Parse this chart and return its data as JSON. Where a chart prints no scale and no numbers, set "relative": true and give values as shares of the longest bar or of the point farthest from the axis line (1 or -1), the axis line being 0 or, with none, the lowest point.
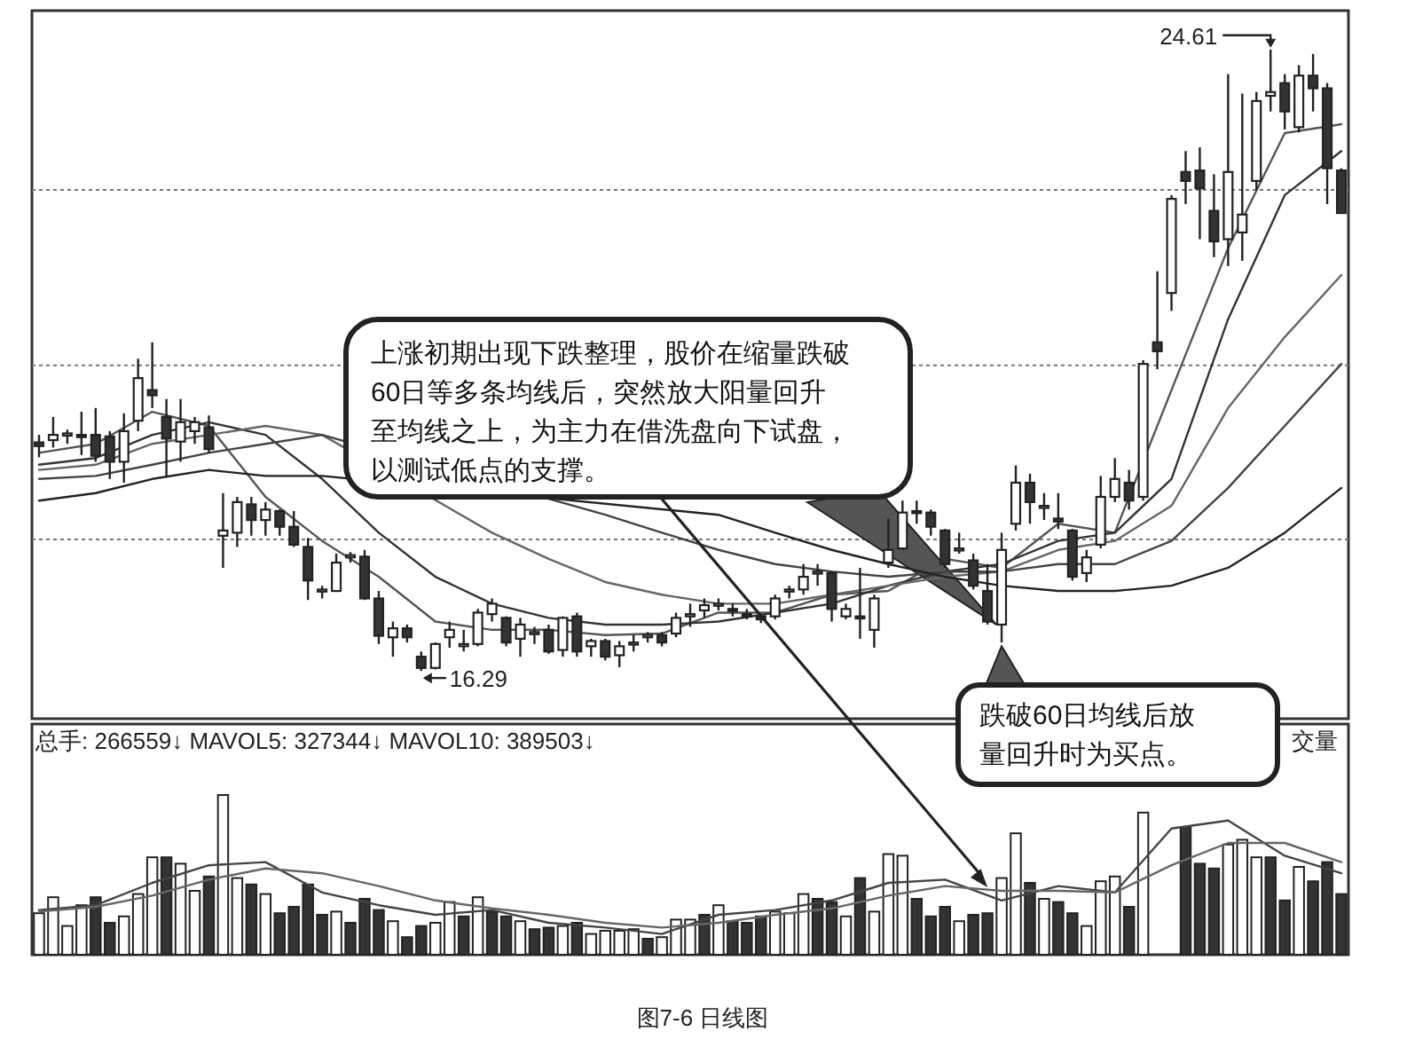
{
  "chart_data": [
    {
      "type": "candlestick",
      "categories": [
        null,
        null,
        null,
        null,
        null,
        null,
        null,
        null,
        null,
        null,
        null,
        null,
        null,
        null,
        null,
        null,
        null,
        null,
        null,
        null,
        null,
        null,
        null,
        null,
        null,
        null,
        null,
        null,
        null,
        null,
        null,
        null,
        null,
        null,
        null,
        null,
        null,
        null,
        null,
        null,
        null,
        null,
        null,
        null,
        null,
        null,
        null,
        null,
        null,
        null,
        null,
        null,
        null,
        null,
        null,
        null,
        null,
        null,
        null,
        null,
        null,
        null,
        null,
        null,
        null,
        null,
        null,
        null,
        null,
        null,
        null,
        null,
        null,
        null,
        null,
        null,
        null,
        null,
        null,
        null,
        null,
        null,
        null,
        null,
        null,
        null,
        null,
        null,
        null,
        null,
        null,
        null,
        null
      ],
      "ohlc": [
        [
          19.35,
          19.45,
          19.15,
          19.3
        ],
        [
          19.38,
          19.69,
          19.28,
          19.45
        ],
        [
          19.44,
          19.52,
          19.33,
          19.47
        ],
        [
          19.45,
          19.76,
          19.18,
          19.42
        ],
        [
          19.45,
          19.81,
          19.09,
          19.17
        ],
        [
          19.43,
          19.5,
          18.86,
          19.09
        ],
        [
          19.09,
          19.74,
          18.81,
          19.5
        ],
        [
          19.64,
          20.47,
          19.5,
          20.21
        ],
        [
          20.05,
          20.69,
          19.81,
          19.98
        ],
        [
          19.69,
          19.93,
          18.88,
          19.4
        ],
        [
          19.36,
          19.93,
          19.09,
          19.62
        ],
        [
          19.5,
          19.69,
          19.33,
          19.62
        ],
        [
          19.55,
          19.71,
          19.21,
          19.26
        ],
        [
          18.1,
          18.67,
          17.67,
          18.17
        ],
        [
          18.14,
          18.62,
          17.95,
          18.55
        ],
        [
          18.52,
          18.62,
          18.1,
          18.31
        ],
        [
          18.31,
          18.55,
          18.1,
          18.45
        ],
        [
          18.43,
          18.45,
          18.1,
          18.22
        ],
        [
          18.22,
          18.43,
          17.95,
          17.98
        ],
        [
          17.95,
          18.07,
          17.24,
          17.5
        ],
        [
          17.36,
          17.43,
          17.26,
          17.38
        ],
        [
          17.36,
          17.86,
          17.36,
          17.74
        ],
        [
          17.81,
          17.88,
          17.74,
          17.84
        ],
        [
          17.82,
          17.91,
          17.24,
          17.26
        ],
        [
          17.26,
          17.36,
          16.65,
          16.76
        ],
        [
          16.74,
          16.95,
          16.48,
          16.86
        ],
        [
          16.86,
          16.91,
          16.67,
          16.74
        ],
        [
          16.48,
          16.55,
          16.29,
          16.33
        ],
        [
          16.33,
          16.67,
          16.31,
          16.65
        ],
        [
          16.74,
          16.95,
          16.6,
          16.84
        ],
        [
          16.62,
          16.84,
          16.55,
          16.65
        ],
        [
          16.65,
          17.12,
          16.62,
          17.07
        ],
        [
          17.05,
          17.26,
          16.95,
          17.19
        ],
        [
          17.0,
          17.02,
          16.62,
          16.67
        ],
        [
          16.72,
          17.0,
          16.48,
          16.91
        ],
        [
          16.79,
          16.88,
          16.65,
          16.81
        ],
        [
          16.84,
          16.91,
          16.52,
          16.55
        ],
        [
          16.57,
          17.02,
          16.48,
          17.0
        ],
        [
          17.02,
          17.07,
          16.48,
          16.55
        ],
        [
          16.62,
          16.72,
          16.48,
          16.69
        ],
        [
          16.69,
          16.72,
          16.43,
          16.48
        ],
        [
          16.5,
          16.69,
          16.34,
          16.62
        ],
        [
          16.65,
          16.77,
          16.55,
          16.67
        ],
        [
          16.74,
          16.81,
          16.67,
          16.77
        ],
        [
          16.77,
          16.81,
          16.62,
          16.67
        ],
        [
          16.79,
          17.07,
          16.74,
          17.0
        ],
        [
          17.02,
          17.19,
          16.88,
          17.05
        ],
        [
          17.1,
          17.26,
          17.0,
          17.17
        ],
        [
          17.17,
          17.26,
          17.1,
          17.19
        ],
        [
          17.12,
          17.19,
          17.02,
          17.1
        ],
        [
          17.05,
          17.12,
          16.98,
          17.02
        ],
        [
          17.02,
          17.05,
          16.93,
          16.98
        ],
        [
          17.02,
          17.31,
          16.98,
          17.26
        ],
        [
          17.36,
          17.43,
          17.26,
          17.38
        ],
        [
          17.38,
          17.72,
          17.31,
          17.55
        ],
        [
          17.6,
          17.72,
          17.43,
          17.62
        ],
        [
          17.6,
          17.62,
          16.95,
          17.12
        ],
        [
          17.02,
          17.19,
          16.98,
          17.12
        ],
        [
          17.02,
          17.67,
          16.72,
          17.0
        ],
        [
          16.84,
          17.31,
          16.6,
          17.26
        ],
        [
          17.74,
          18.33,
          17.67,
          17.91
        ],
        [
          17.93,
          18.57,
          17.91,
          18.41
        ],
        [
          18.43,
          18.57,
          18.26,
          18.41
        ],
        [
          18.41,
          18.45,
          18.1,
          18.22
        ],
        [
          18.17,
          18.19,
          17.67,
          17.72
        ],
        [
          17.93,
          18.14,
          17.86,
          17.93
        ],
        [
          17.77,
          17.86,
          17.38,
          17.43
        ],
        [
          17.36,
          17.72,
          16.91,
          16.95
        ],
        [
          16.91,
          18.14,
          16.67,
          17.91
        ],
        [
          18.26,
          19.04,
          18.17,
          18.81
        ],
        [
          18.81,
          18.93,
          18.26,
          18.55
        ],
        [
          18.48,
          18.67,
          18.31,
          18.5
        ],
        [
          18.33,
          18.67,
          18.19,
          18.29
        ],
        [
          18.17,
          18.19,
          17.5,
          17.55
        ],
        [
          17.6,
          17.91,
          17.48,
          17.81
        ],
        [
          17.98,
          18.9,
          17.93,
          18.62
        ],
        [
          18.62,
          19.14,
          18.55,
          18.86
        ],
        [
          18.81,
          18.98,
          18.45,
          18.57
        ],
        [
          18.62,
          20.45,
          18.57,
          20.4
        ],
        [
          20.69,
          21.64,
          20.33,
          20.57
        ],
        [
          21.35,
          22.66,
          21.11,
          22.61
        ],
        [
          22.97,
          23.25,
          22.54,
          22.85
        ],
        [
          22.99,
          23.3,
          22.07,
          22.75
        ],
        [
          22.45,
          22.94,
          21.83,
          22.04
        ],
        [
          22.07,
          24.28,
          21.71,
          22.97
        ],
        [
          22.16,
          24.02,
          21.78,
          22.4
        ],
        [
          22.85,
          24.04,
          22.73,
          23.92
        ],
        [
          23.99,
          24.61,
          23.78,
          24.04
        ],
        [
          24.16,
          24.28,
          23.54,
          23.78
        ],
        [
          23.57,
          24.4,
          23.5,
          24.26
        ],
        [
          24.26,
          24.55,
          23.78,
          24.09
        ],
        [
          24.09,
          24.16,
          22.54,
          23.02
        ],
        [
          22.99,
          23.02,
          22.42,
          22.42
        ]
      ],
      "series": [
        {
          "type": "line",
          "color": "#555555",
          "values": [
            19.21,
            null,
            null,
            null,
            19.33,
            null,
            null,
            null,
            19.76,
            null,
            null,
            null,
            19.57,
            null,
            null,
            null,
            18.62,
            null,
            null,
            null,
            18.03,
            null,
            null,
            null,
            17.55,
            null,
            null,
            null,
            16.95,
            null,
            null,
            null,
            16.84,
            null,
            null,
            null,
            16.84,
            null,
            null,
            null,
            16.77,
            null,
            null,
            null,
            16.79,
            null,
            null,
            null,
            17.07,
            null,
            null,
            null,
            17.07,
            null,
            null,
            null,
            17.31,
            null,
            null,
            null,
            17.36,
            null,
            null,
            null,
            17.79,
            null,
            null,
            null,
            17.67,
            null,
            null,
            null,
            18.26,
            null,
            null,
            null,
            18.14,
            null,
            null,
            null,
            20.05,
            null,
            null,
            null,
            21.95,
            null,
            null,
            null,
            23.49,
            null,
            null,
            null,
            23.61
          ]
        },
        {
          "type": "line",
          "color": "#333333",
          "values": [
            19.05,
            null,
            null,
            null,
            19.14,
            null,
            null,
            null,
            19.45,
            null,
            null,
            null,
            19.62,
            null,
            null,
            null,
            19.45,
            null,
            null,
            null,
            18.86,
            null,
            null,
            null,
            18.14,
            null,
            null,
            null,
            17.55,
            null,
            null,
            null,
            17.19,
            null,
            null,
            null,
            17.0,
            null,
            null,
            null,
            16.91,
            null,
            null,
            null,
            16.91,
            null,
            null,
            null,
            16.95,
            null,
            null,
            null,
            17.07,
            null,
            null,
            null,
            17.19,
            null,
            null,
            null,
            17.43,
            null,
            null,
            null,
            17.62,
            null,
            null,
            null,
            17.72,
            null,
            null,
            null,
            18.03,
            null,
            null,
            null,
            18.14,
            null,
            null,
            null,
            18.86,
            null,
            null,
            null,
            21.0,
            null,
            null,
            null,
            22.66,
            null,
            null,
            null,
            23.25
          ]
        },
        {
          "type": "line",
          "color": "#666666",
          "values": [
            18.98,
            null,
            null,
            null,
            19.05,
            null,
            null,
            null,
            19.33,
            null,
            null,
            null,
            19.45,
            null,
            null,
            null,
            19.57,
            null,
            null,
            null,
            19.45,
            null,
            null,
            null,
            null,
            null,
            null,
            null,
            null,
            null,
            null,
            null,
            18.14,
            null,
            null,
            null,
            17.79,
            null,
            null,
            null,
            17.48,
            null,
            null,
            null,
            17.31,
            null,
            null,
            null,
            17.19,
            null,
            null,
            null,
            17.19,
            null,
            null,
            null,
            17.31,
            null,
            null,
            null,
            17.43,
            null,
            null,
            null,
            17.55,
            null,
            null,
            null,
            17.62,
            null,
            null,
            null,
            17.91,
            null,
            null,
            null,
            18.03,
            null,
            null,
            null,
            18.5,
            null,
            null,
            null,
            19.81,
            null,
            null,
            null,
            20.76,
            null,
            null,
            null,
            21.59
          ]
        },
        {
          "type": "line",
          "color": "#444444",
          "values": [
            18.86,
            null,
            null,
            null,
            18.9,
            null,
            null,
            null,
            19.05,
            null,
            null,
            null,
            19.21,
            null,
            null,
            null,
            19.33,
            null,
            null,
            null,
            19.45,
            null,
            null,
            null,
            null,
            null,
            null,
            null,
            null,
            null,
            null,
            null,
            null,
            null,
            null,
            null,
            null,
            null,
            null,
            null,
            18.38,
            null,
            null,
            null,
            18.14,
            null,
            null,
            null,
            17.91,
            null,
            null,
            null,
            17.72,
            null,
            null,
            null,
            17.62,
            null,
            null,
            null,
            17.55,
            null,
            null,
            null,
            17.62,
            null,
            null,
            null,
            17.62,
            null,
            null,
            null,
            17.72,
            null,
            null,
            null,
            17.72,
            null,
            null,
            null,
            18.03,
            null,
            null,
            null,
            18.74,
            null,
            null,
            null,
            19.57,
            null,
            null,
            null,
            20.4
          ]
        },
        {
          "type": "line",
          "color": "#222222",
          "values": [
            18.57,
            null,
            null,
            null,
            18.67,
            null,
            null,
            null,
            18.86,
            null,
            null,
            null,
            18.98,
            null,
            null,
            null,
            18.9,
            null,
            null,
            null,
            18.9,
            null,
            null,
            null,
            null,
            null,
            null,
            null,
            null,
            null,
            null,
            null,
            null,
            null,
            null,
            null,
            null,
            null,
            null,
            null,
            null,
            null,
            null,
            null,
            null,
            null,
            null,
            null,
            18.38,
            null,
            null,
            null,
            18.14,
            null,
            null,
            null,
            17.91,
            null,
            null,
            null,
            17.72,
            null,
            null,
            null,
            17.55,
            null,
            null,
            null,
            17.43,
            null,
            null,
            null,
            17.36,
            null,
            null,
            null,
            17.36,
            null,
            null,
            null,
            17.43,
            null,
            null,
            null,
            17.67,
            null,
            null,
            null,
            18.14,
            null,
            null,
            null,
            18.74
          ]
        }
      ],
      "ylim": [
        15.65,
        25.13
      ],
      "yticks": [
        {
          "value": 18.05,
          "label": null
        },
        {
          "value": 20.38,
          "label": null
        },
        {
          "value": 22.73,
          "label": null
        }
      ],
      "grid": "y",
      "annotations": [
        "上涨初期出现下跌整理，股价在缩量跌破60日等多条均线后，突然放大阳量回升至均线之上，为主力在借洗盘向下试盘，以测试低点的支撑。",
        "跌破60日均线后放量回升时为买点。",
        "图7-6 日线图",
        "24.61",
        "16.29"
      ]
    },
    {
      "type": "bar",
      "relative": true,
      "title": "总手: 266559↓ MAVOL5: 327344↓ MAVOL10: 389503↓",
      "categories": [
        null,
        null,
        null,
        null,
        null,
        null,
        null,
        null,
        null,
        null,
        null,
        null,
        null,
        null,
        null,
        null,
        null,
        null,
        null,
        null,
        null,
        null,
        null,
        null,
        null,
        null,
        null,
        null,
        null,
        null,
        null,
        null,
        null,
        null,
        null,
        null,
        null,
        null,
        null,
        null,
        null,
        null,
        null,
        null,
        null,
        null,
        null,
        null,
        null,
        null,
        null,
        null,
        null,
        null,
        null,
        null,
        null,
        null,
        null,
        null,
        null,
        null,
        null,
        null,
        null,
        null,
        null,
        null,
        null,
        null,
        null,
        null,
        null,
        null,
        null,
        null,
        null,
        null,
        null,
        null,
        null,
        null,
        null,
        null,
        null,
        null,
        null,
        null,
        null,
        null,
        null,
        null,
        null
      ],
      "values": [
        0.26,
        0.36,
        0.18,
        0.31,
        0.36,
        0.2,
        0.24,
        0.38,
        0.61,
        0.61,
        0.57,
        0.4,
        0.49,
        1,
        0.48,
        0.44,
        0.38,
        0.26,
        0.3,
        0.44,
        0.25,
        0.27,
        0.2,
        0.35,
        0.28,
        0.21,
        0.11,
        0.18,
        0.2,
        0.33,
        0.24,
        0.36,
        0.27,
        0.24,
        0.21,
        0.16,
        0.17,
        0.18,
        0.2,
        0.13,
        0.15,
        0.15,
        0.16,
        0.1,
        0.11,
        0.22,
        0.22,
        0.25,
        0.31,
        0.21,
        0.2,
        0.24,
        0.27,
        0.26,
        0.38,
        0.35,
        0.33,
        0.24,
        0.48,
        0.27,
        0.63,
        0.62,
        0.35,
        0.24,
        0.3,
        0.21,
        0.25,
        0.26,
        0.48,
        0.76,
        0.45,
        0.35,
        0.33,
        0.26,
        0.18,
        0.46,
        0.49,
        0.3,
        0.89,
        null,
        null,
        0.8,
        0.57,
        0.54,
        0.69,
        0.72,
        0.61,
        0.61,
        0.34,
        0.55,
        0.46,
        0.58,
        0.38
      ],
      "colors": [
        "#ffffff",
        "#ffffff",
        "#ffffff",
        "#ffffff",
        "#333333",
        "#333333",
        "#ffffff",
        "#ffffff",
        "#ffffff",
        "#333333",
        "#ffffff",
        "#ffffff",
        "#333333",
        "#ffffff",
        "#ffffff",
        "#333333",
        "#ffffff",
        "#333333",
        "#333333",
        "#333333",
        "#333333",
        "#ffffff",
        "#333333",
        "#333333",
        "#333333",
        "#ffffff",
        "#333333",
        "#333333",
        "#ffffff",
        "#ffffff",
        "#333333",
        "#ffffff",
        "#333333",
        "#333333",
        "#ffffff",
        "#333333",
        "#333333",
        "#ffffff",
        "#333333",
        "#ffffff",
        "#ffffff",
        "#ffffff",
        "#ffffff",
        "#333333",
        "#ffffff",
        "#ffffff",
        "#ffffff",
        "#333333",
        "#ffffff",
        "#333333",
        "#333333",
        "#333333",
        "#ffffff",
        "#ffffff",
        "#ffffff",
        "#333333",
        "#333333",
        "#ffffff",
        "#333333",
        "#ffffff",
        "#ffffff",
        "#ffffff",
        "#333333",
        "#333333",
        "#333333",
        "#ffffff",
        "#333333",
        "#333333",
        "#ffffff",
        "#ffffff",
        "#333333",
        "#ffffff",
        "#333333",
        "#333333",
        "#ffffff",
        "#ffffff",
        "#ffffff",
        "#333333",
        "#ffffff",
        "#333333",
        "#ffffff",
        "#333333",
        "#333333",
        "#333333",
        "#ffffff",
        "#ffffff",
        "#ffffff",
        "#333333",
        "#333333",
        "#ffffff",
        "#333333",
        "#333333",
        "#333333"
      ],
      "series": [
        {
          "type": "line",
          "color": "#444444",
          "values": [
            0.28,
            null,
            null,
            null,
            0.31,
            null,
            null,
            null,
            0.45,
            null,
            null,
            null,
            0.56,
            null,
            null,
            null,
            0.58,
            null,
            null,
            null,
            0.39,
            null,
            null,
            null,
            0.31,
            null,
            null,
            null,
            0.25,
            null,
            null,
            null,
            0.28,
            null,
            null,
            null,
            0.2,
            null,
            null,
            null,
            0.17,
            null,
            null,
            null,
            0.13,
            null,
            null,
            null,
            0.25,
            null,
            null,
            null,
            0.28,
            null,
            null,
            null,
            0.34,
            null,
            null,
            null,
            0.45,
            null,
            null,
            null,
            0.47,
            null,
            null,
            null,
            0.34,
            null,
            null,
            null,
            0.43,
            null,
            null,
            null,
            0.39,
            null,
            null,
            null,
            0.79,
            null,
            null,
            null,
            0.84,
            null,
            null,
            null,
            0.62,
            null,
            null,
            null,
            0.51
          ]
        },
        {
          "type": "line",
          "color": "#666666",
          "values": [
            0.27,
            null,
            null,
            null,
            0.3,
            null,
            null,
            null,
            0.37,
            null,
            null,
            null,
            0.47,
            null,
            null,
            null,
            0.54,
            null,
            null,
            null,
            0.51,
            null,
            null,
            null,
            0.43,
            null,
            null,
            null,
            0.34,
            null,
            null,
            null,
            0.29,
            null,
            null,
            null,
            0.25,
            null,
            null,
            null,
            0.2,
            null,
            null,
            null,
            0.17,
            null,
            null,
            null,
            0.2,
            null,
            null,
            null,
            0.25,
            null,
            null,
            null,
            0.29,
            null,
            null,
            null,
            0.37,
            null,
            null,
            null,
            0.43,
            null,
            null,
            null,
            0.4,
            null,
            null,
            null,
            0.4,
            null,
            null,
            null,
            0.39,
            null,
            null,
            null,
            0.56,
            null,
            null,
            null,
            0.7,
            null,
            null,
            null,
            0.7,
            null,
            null,
            null,
            0.58
          ]
        }
      ],
      "annotations": [
        "交量"
      ]
    }
  ]
}
